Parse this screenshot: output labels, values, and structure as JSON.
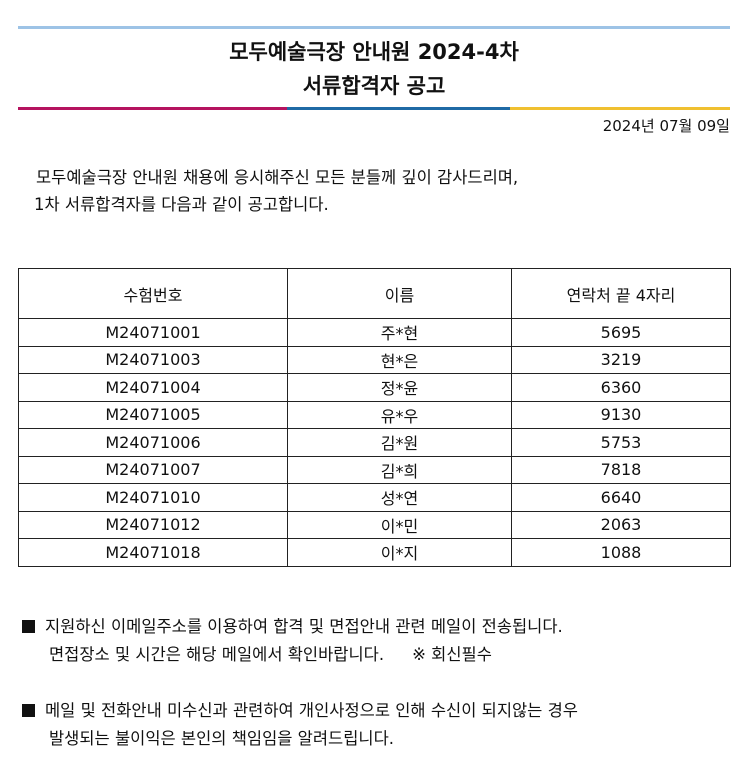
{
  "title_line1": "모두예술극장 안내원 2024-4차",
  "title_line2": "서류합격자 공고",
  "colors": {
    "top_line": "#9dc3e6",
    "bar": [
      "#b5135f",
      "#1f6aa5",
      "#f0c030"
    ]
  },
  "date": "2024년 07월 09일",
  "intro": [
    "모두예술극장 안내원 채용에 응시해주신 모든 분들께 깊이 감사드리며,",
    "1차 서류합격자를 다음과 같이 공고합니다."
  ],
  "table": {
    "headers": [
      "수험번호",
      "이름",
      "연락처 끝 4자리"
    ],
    "rows": [
      [
        "M24071001",
        "주*현",
        "5695"
      ],
      [
        "M24071003",
        "현*은",
        "3219"
      ],
      [
        "M24071004",
        "정*윤",
        "6360"
      ],
      [
        "M24071005",
        "유*우",
        "9130"
      ],
      [
        "M24071006",
        "김*원",
        "5753"
      ],
      [
        "M24071007",
        "김*희",
        "7818"
      ],
      [
        "M24071010",
        "성*연",
        "6640"
      ],
      [
        "M24071012",
        "이*민",
        "2063"
      ],
      [
        "M24071018",
        "이*지",
        "1088"
      ]
    ]
  },
  "notes": [
    {
      "line1": "지원하신 이메일주소를 이용하여 합격 및 면접안내 관련 메일이 전송됩니다.",
      "line2": "면접장소 및 시간은 해당 메일에서 확인바랍니다.",
      "extra": "※ 회신필수"
    },
    {
      "line1": "메일 및 전화안내 미수신과 관련하여 개인사정으로 인해 수신이 되지않는 경우",
      "line2": "발생되는 불이익은 본인의 책임임을 알려드립니다."
    }
  ]
}
